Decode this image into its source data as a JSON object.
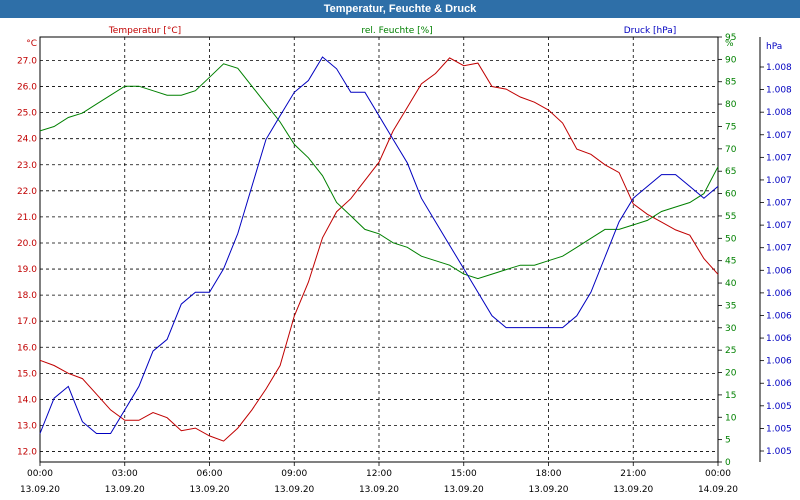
{
  "window": {
    "title": "Temperatur, Feuchte & Druck"
  },
  "colors": {
    "titlebar": "#2e6fa8",
    "temperature": "#c00000",
    "humidity": "#008000",
    "pressure": "#0000c0",
    "grid": "#000000"
  },
  "chart_data": {
    "type": "line",
    "title": "Temperatur, Feuchte & Druck",
    "grid": true,
    "x": {
      "tick_times": [
        "00:00",
        "03:00",
        "06:00",
        "09:00",
        "12:00",
        "15:00",
        "18:00",
        "21:00",
        "00:00"
      ],
      "tick_dates": [
        "13.09.20",
        "13.09.20",
        "13.09.20",
        "13.09.20",
        "13.09.20",
        "13.09.20",
        "13.09.20",
        "13.09.20",
        "14.09.20"
      ],
      "range_hours": [
        0,
        24
      ]
    },
    "axes": {
      "left": {
        "unit": "°C",
        "min": 11.6,
        "max": 27.9,
        "ticks": [
          "12.0",
          "13.0",
          "14.0",
          "15.0",
          "16.0",
          "17.0",
          "18.0",
          "19.0",
          "20.0",
          "21.0",
          "22.0",
          "23.0",
          "24.0",
          "25.0",
          "26.0",
          "27.0"
        ]
      },
      "right1": {
        "unit": "%",
        "min": 0,
        "max": 95,
        "ticks": [
          "0",
          "5",
          "10",
          "15",
          "20",
          "25",
          "30",
          "35",
          "40",
          "45",
          "50",
          "55",
          "60",
          "65",
          "70",
          "75",
          "80",
          "85",
          "90",
          "95"
        ]
      },
      "right2": {
        "unit": "hPa",
        "min": 1004.9,
        "max": 1008.3,
        "ticks": [
          "1.005",
          "1.005",
          "1.005",
          "1.006",
          "1.006",
          "1.006",
          "1.006",
          "1.006",
          "1.006",
          "1.007",
          "1.007",
          "1.007",
          "1.007",
          "1.007",
          "1.007",
          "1.008",
          "1.008",
          "1.008"
        ]
      }
    },
    "series": [
      {
        "name": "Temperatur [°C]",
        "color": "#c00000",
        "axis": "left",
        "x": [
          0,
          0.5,
          1,
          1.5,
          2,
          2.5,
          3,
          3.5,
          4,
          4.5,
          5,
          5.5,
          6,
          6.5,
          7,
          7.5,
          8,
          8.5,
          9,
          9.5,
          10,
          10.5,
          11,
          11.5,
          12,
          12.5,
          13,
          13.5,
          14,
          14.5,
          15,
          15.5,
          16,
          16.5,
          17,
          17.5,
          18,
          18.5,
          19,
          19.5,
          20,
          20.5,
          21,
          21.5,
          22,
          22.5,
          23,
          23.5,
          24
        ],
        "y": [
          15.5,
          15.3,
          15.0,
          14.8,
          14.2,
          13.6,
          13.2,
          13.2,
          13.5,
          13.3,
          12.8,
          12.9,
          12.6,
          12.4,
          12.9,
          13.6,
          14.4,
          15.3,
          17.2,
          18.5,
          20.2,
          21.2,
          21.7,
          22.4,
          23.1,
          24.3,
          25.2,
          26.1,
          26.5,
          27.1,
          26.8,
          26.9,
          26.0,
          25.9,
          25.6,
          25.4,
          25.1,
          24.6,
          23.6,
          23.4,
          23.0,
          22.7,
          21.5,
          21.1,
          20.8,
          20.5,
          20.3,
          19.4,
          18.8
        ]
      },
      {
        "name": "rel. Feuchte [%]",
        "color": "#008000",
        "axis": "right1",
        "x": [
          0,
          0.5,
          1,
          1.5,
          2,
          2.5,
          3,
          3.5,
          4,
          4.5,
          5,
          5.5,
          6,
          6.5,
          7,
          7.5,
          8,
          8.5,
          9,
          9.5,
          10,
          10.5,
          11,
          11.5,
          12,
          12.5,
          13,
          13.5,
          14,
          14.5,
          15,
          15.5,
          16,
          16.5,
          17,
          17.5,
          18,
          18.5,
          19,
          19.5,
          20,
          20.5,
          21,
          21.5,
          22,
          22.5,
          23,
          23.5,
          24
        ],
        "y": [
          74,
          75,
          77,
          78,
          80,
          82,
          84,
          84,
          83,
          82,
          82,
          83,
          86,
          89,
          88,
          84,
          80,
          76,
          71,
          68,
          64,
          58,
          55,
          52,
          51,
          49,
          48,
          46,
          45,
          44,
          42,
          41,
          42,
          43,
          44,
          44,
          45,
          46,
          48,
          50,
          52,
          52,
          53,
          54,
          56,
          57,
          58,
          60,
          66
        ]
      },
      {
        "name": "Druck [hPa]",
        "color": "#0000c0",
        "axis": "right2",
        "x": [
          0,
          0.5,
          1,
          1.5,
          2,
          2.5,
          3,
          3.5,
          4,
          4.5,
          5,
          5.5,
          6,
          6.5,
          7,
          7.5,
          8,
          8.5,
          9,
          9.5,
          10,
          10.5,
          11,
          11.5,
          12,
          12.5,
          13,
          13.5,
          14,
          14.5,
          15,
          15.5,
          16,
          16.5,
          17,
          17.5,
          18,
          18.5,
          19,
          19.5,
          20,
          20.5,
          21,
          21.5,
          22,
          22.5,
          23,
          23.5,
          24
        ],
        "y": [
          1005.1,
          1005.4,
          1005.5,
          1005.2,
          1005.1,
          1005.1,
          1005.3,
          1005.5,
          1005.8,
          1005.9,
          1006.2,
          1006.3,
          1006.3,
          1006.5,
          1006.8,
          1007.2,
          1007.6,
          1007.8,
          1008.0,
          1008.1,
          1008.3,
          1008.2,
          1008.0,
          1008.0,
          1007.8,
          1007.6,
          1007.4,
          1007.1,
          1006.9,
          1006.7,
          1006.5,
          1006.3,
          1006.1,
          1006.0,
          1006.0,
          1006.0,
          1006.0,
          1006.0,
          1006.1,
          1006.3,
          1006.6,
          1006.9,
          1007.1,
          1007.2,
          1007.3,
          1007.3,
          1007.2,
          1007.1,
          1007.2
        ]
      }
    ]
  }
}
